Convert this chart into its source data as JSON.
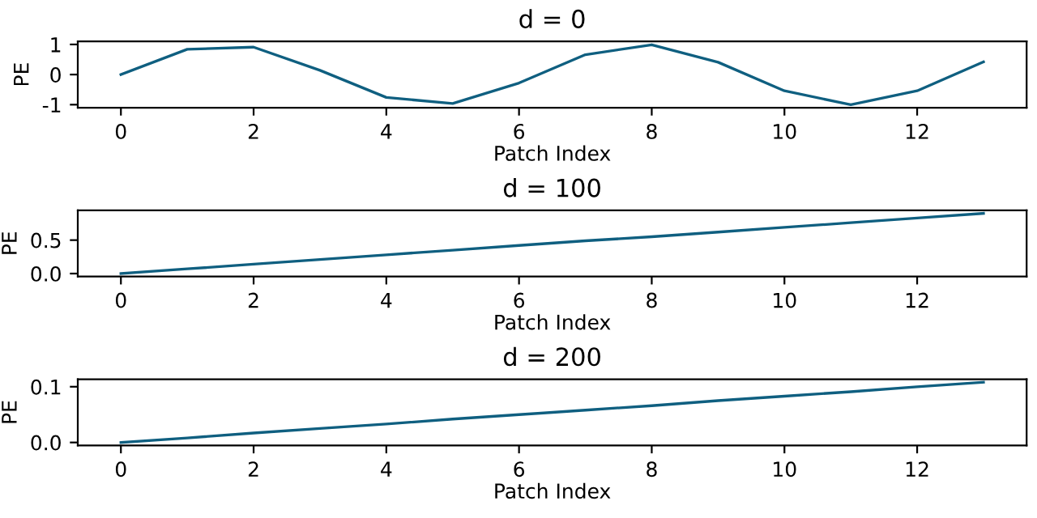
{
  "chart_data": [
    {
      "type": "line",
      "title": "d = 0",
      "xlabel": "Patch Index",
      "ylabel": "PE",
      "x": [
        0,
        1,
        2,
        3,
        4,
        5,
        6,
        7,
        8,
        9,
        10,
        11,
        12,
        13
      ],
      "series": [
        {
          "color": "#0f5f80",
          "values": [
            0,
            0.84,
            0.91,
            0.14,
            -0.76,
            -0.96,
            -0.28,
            0.66,
            0.99,
            0.41,
            -0.54,
            -1.0,
            -0.54,
            0.42
          ]
        }
      ],
      "xlim": [
        -0.65,
        13.65
      ],
      "xticks": [
        0,
        2,
        4,
        6,
        8,
        10,
        12
      ],
      "ylim": [
        -1.1,
        1.1
      ],
      "yticks": [
        -1,
        0,
        1
      ],
      "grid": false,
      "legend": false
    },
    {
      "type": "line",
      "title": "d = 100",
      "xlabel": "Patch Index",
      "ylabel": "PE",
      "x": [
        0,
        1,
        2,
        3,
        4,
        5,
        6,
        7,
        8,
        9,
        10,
        11,
        12,
        13
      ],
      "series": [
        {
          "color": "#0f5f80",
          "values": [
            0,
            0.07,
            0.14,
            0.21,
            0.28,
            0.35,
            0.42,
            0.49,
            0.55,
            0.62,
            0.69,
            0.76,
            0.83,
            0.9
          ]
        }
      ],
      "xlim": [
        -0.65,
        13.65
      ],
      "xticks": [
        0,
        2,
        4,
        6,
        8,
        10,
        12
      ],
      "ylim": [
        -0.045,
        0.945
      ],
      "yticks": [
        {
          "value": 0,
          "label": "0.0"
        },
        0.5
      ],
      "grid": false,
      "legend": false
    },
    {
      "type": "line",
      "title": "d = 200",
      "xlabel": "Patch Index",
      "ylabel": "PE",
      "x": [
        0,
        1,
        2,
        3,
        4,
        5,
        6,
        7,
        8,
        9,
        10,
        11,
        12,
        13
      ],
      "series": [
        {
          "color": "#0f5f80",
          "values": [
            0,
            0.008,
            0.017,
            0.025,
            0.033,
            0.042,
            0.05,
            0.058,
            0.066,
            0.075,
            0.083,
            0.091,
            0.1,
            0.108
          ]
        }
      ],
      "xlim": [
        -0.65,
        13.65
      ],
      "xticks": [
        0,
        2,
        4,
        6,
        8,
        10,
        12
      ],
      "ylim": [
        -0.0054,
        0.1134
      ],
      "yticks": [
        {
          "value": 0,
          "label": "0.0"
        },
        0.1
      ],
      "grid": false,
      "legend": false
    }
  ]
}
